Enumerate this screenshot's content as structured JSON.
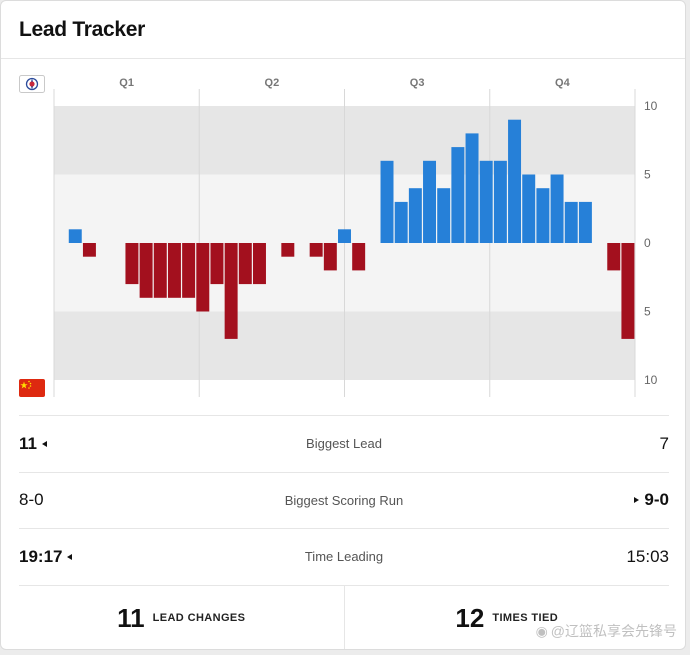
{
  "header": {
    "title": "Lead Tracker"
  },
  "teams": {
    "top": {
      "name": "Chinese Taipei",
      "color": "#2680d8",
      "flag": "taipei-flag"
    },
    "bottom": {
      "name": "China",
      "color": "#a3101e",
      "flag": "china-flag"
    }
  },
  "chart_data": {
    "type": "bar",
    "title": "Lead Tracker",
    "quarters": [
      "Q1",
      "Q2",
      "Q3",
      "Q4"
    ],
    "y_ticks": [
      "10",
      "5",
      "0",
      "5",
      "10"
    ],
    "ylim": [
      -10,
      10
    ],
    "bands": [
      [
        5,
        10
      ],
      [
        -5,
        5
      ],
      [
        -10,
        -5
      ]
    ],
    "values": [
      0,
      1,
      -1,
      0,
      0,
      -3,
      -4,
      -4,
      -4,
      -4,
      -5,
      -3,
      -7,
      -3,
      -3,
      0,
      -1,
      0,
      -1,
      -2,
      1,
      -2,
      0,
      6,
      3,
      4,
      6,
      4,
      7,
      8,
      6,
      6,
      9,
      5,
      4,
      5,
      3,
      3,
      0,
      -2,
      -7
    ]
  },
  "stats": {
    "biggest_lead": {
      "label": "Biggest Lead",
      "left": "11",
      "right": "7"
    },
    "scoring_run": {
      "label": "Biggest Scoring Run",
      "left": "8-0",
      "right": "9-0"
    },
    "time_leading": {
      "label": "Time Leading",
      "left": "19:17",
      "right": "15:03"
    }
  },
  "footer": {
    "lead_changes": {
      "value": "11",
      "label": "LEAD CHANGES"
    },
    "times_tied": {
      "value": "12",
      "label": "TIMES TIED"
    }
  },
  "watermark": "@辽篮私享会先锋号"
}
